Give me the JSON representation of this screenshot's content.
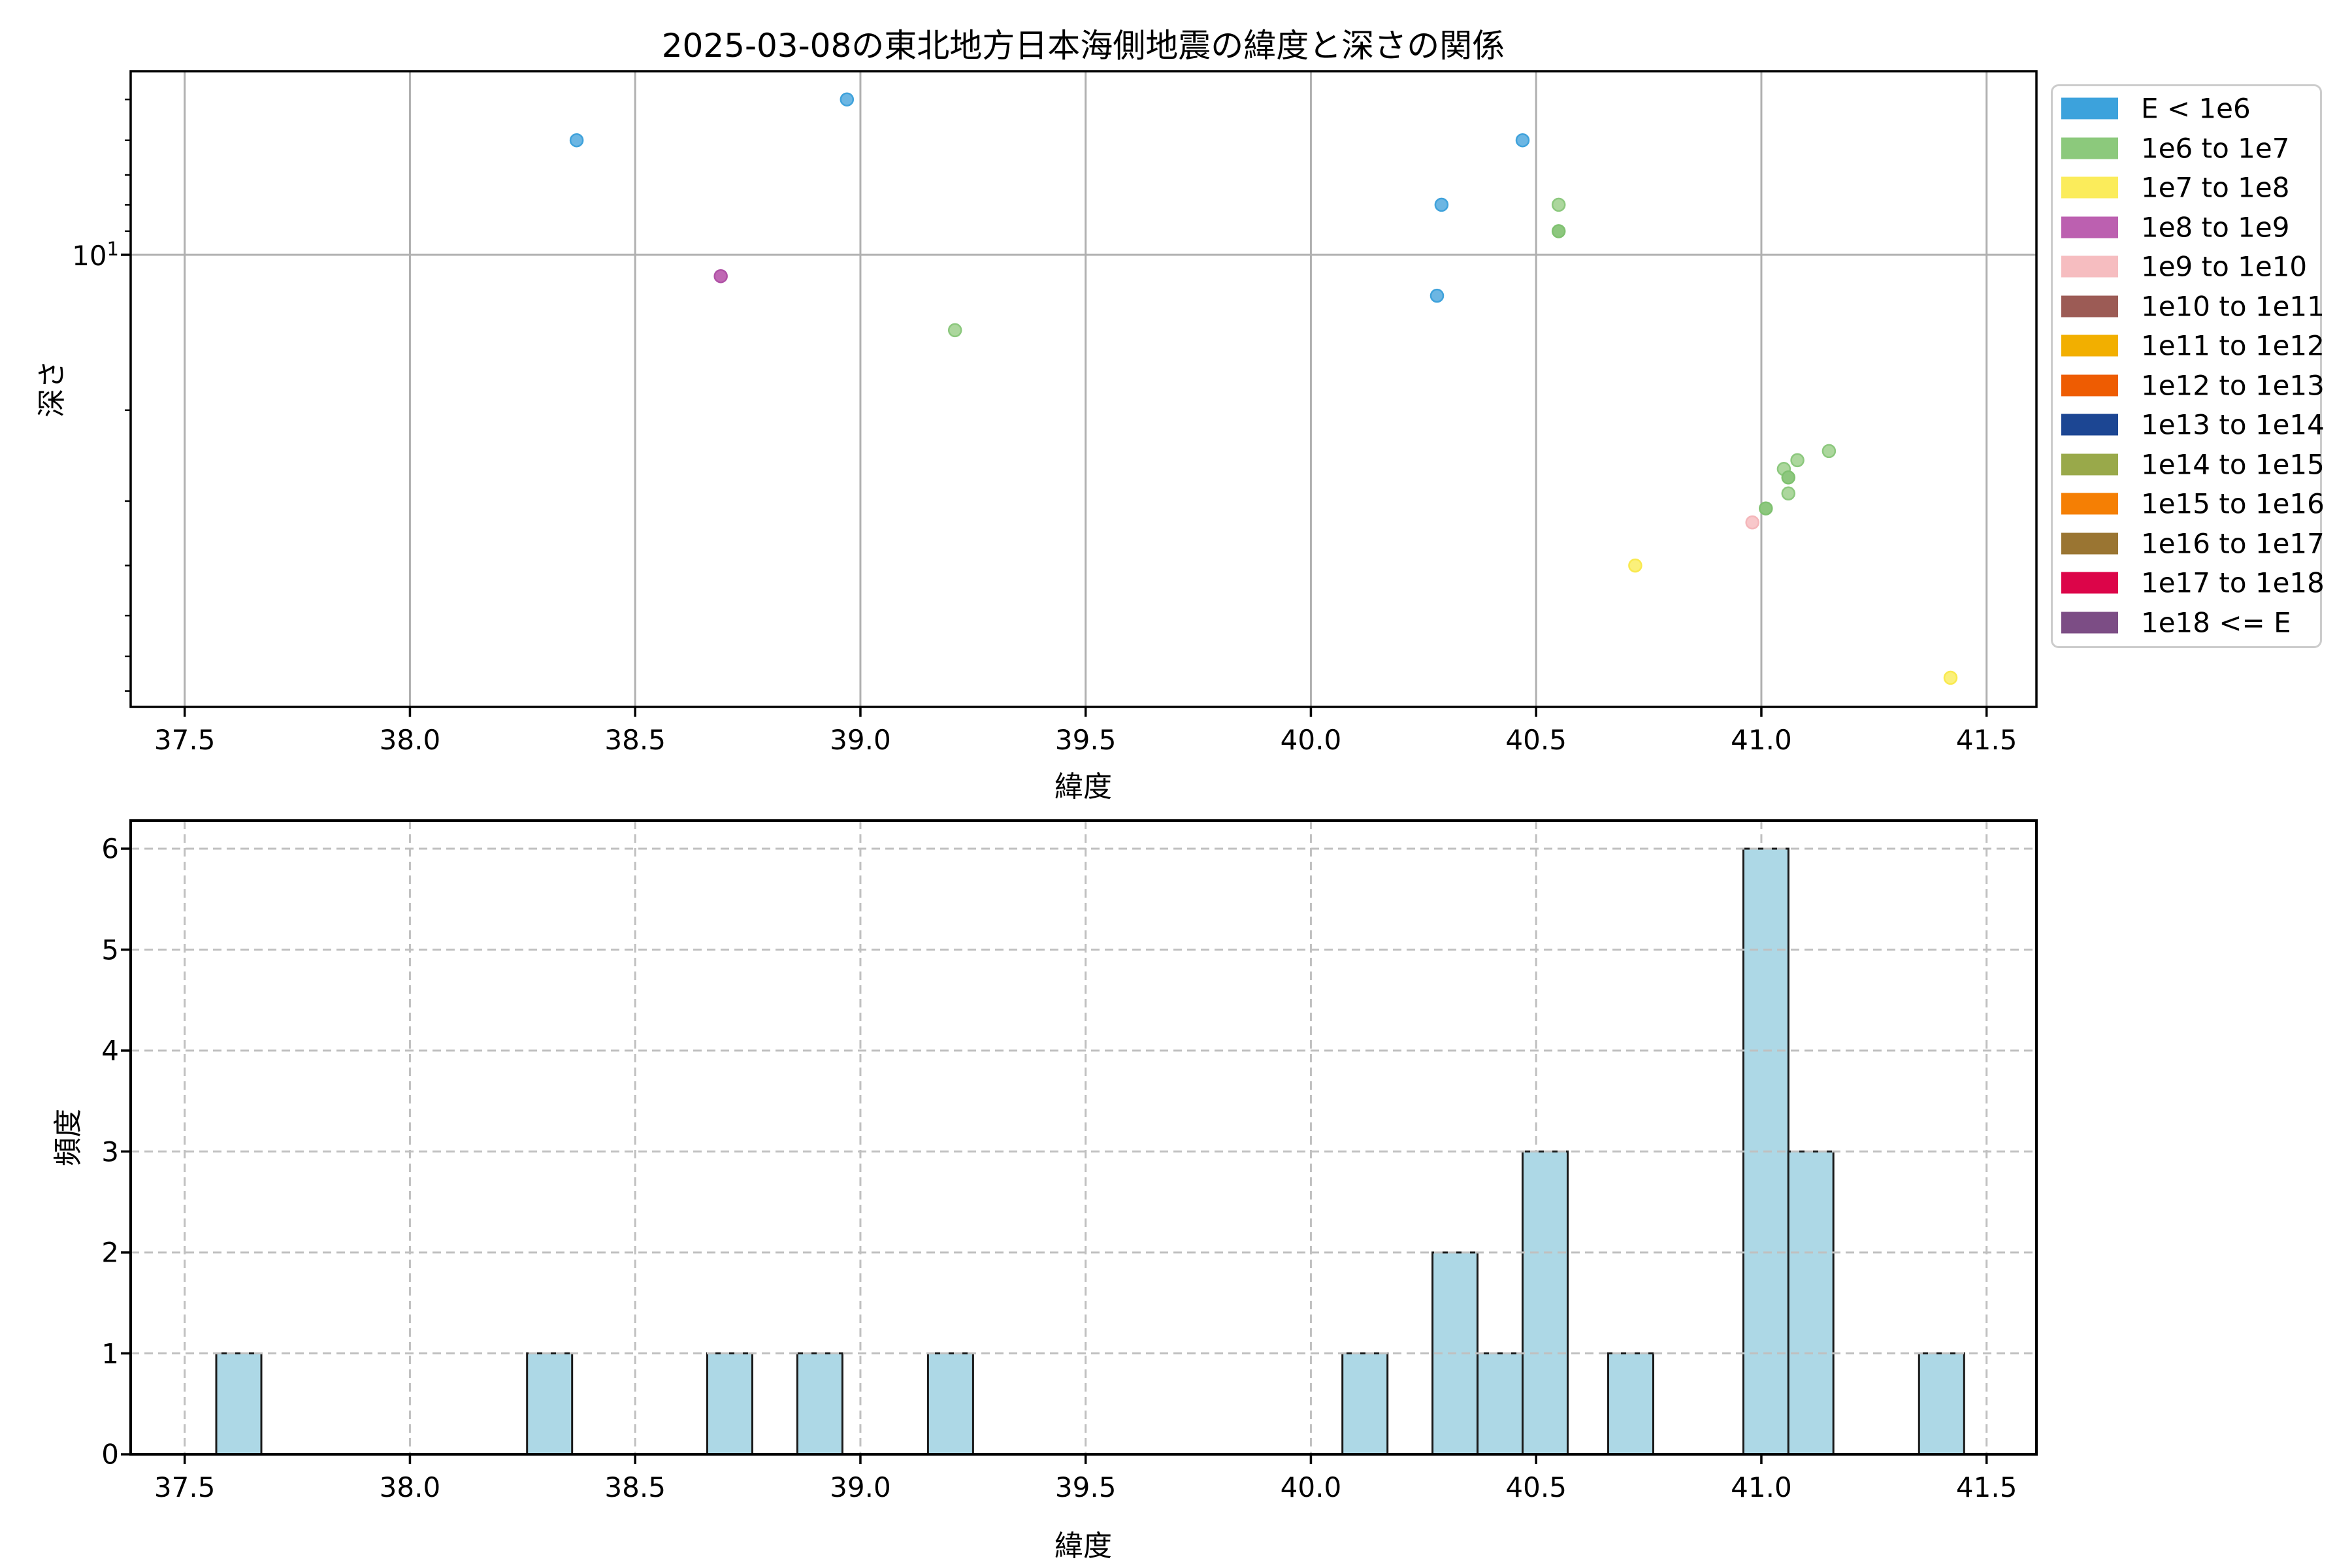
{
  "title": "2025-03-08の東北地方日本海側地震の緯度と深さの関係",
  "chart_data": [
    {
      "type": "scatter",
      "title": "2025-03-08の東北地方日本海側地震の緯度と深さの関係",
      "xlabel": "緯度",
      "ylabel": "深さ",
      "xlim": [
        37.38,
        41.59
      ],
      "xticks": [
        37.5,
        38.0,
        38.5,
        39.0,
        39.5,
        40.0,
        40.5,
        41.0,
        41.5
      ],
      "xtick_labels": [
        "37.5",
        "38.0",
        "38.5",
        "39.0",
        "39.5",
        "40.0",
        "40.5",
        "41.0",
        "41.5"
      ],
      "yaxis": {
        "scale": "log",
        "inverted": true,
        "range_depth": [
          4.4,
          75.1
        ],
        "major_tick": {
          "value": 10,
          "base": "10",
          "exp": "1"
        },
        "minor_ticks": [
          5,
          6,
          7,
          8,
          9,
          20,
          30,
          40,
          50,
          60,
          70
        ]
      },
      "grid": {
        "style": "solid",
        "color": "#b0b0b0"
      },
      "legend_position": "outside upper right",
      "points": [
        {
          "lat": 38.37,
          "depth": 6.0,
          "band": "E < 1e6"
        },
        {
          "lat": 38.97,
          "depth": 5.0,
          "band": "E < 1e6"
        },
        {
          "lat": 38.69,
          "depth": 11.0,
          "band": "1e8 to 1e9"
        },
        {
          "lat": 39.21,
          "depth": 14.0,
          "band": "1e6 to 1e7"
        },
        {
          "lat": 40.28,
          "depth": 12.0,
          "band": "E < 1e6"
        },
        {
          "lat": 40.29,
          "depth": 8.0,
          "band": "E < 1e6"
        },
        {
          "lat": 40.47,
          "depth": 6.0,
          "band": "E < 1e6"
        },
        {
          "lat": 40.55,
          "depth": 8.0,
          "band": "1e6 to 1e7"
        },
        {
          "lat": 40.55,
          "depth": 9.0,
          "band": "1e6 to 1e7",
          "shade": "solid"
        },
        {
          "lat": 40.72,
          "depth": 40.0,
          "band": "1e7 to 1e8"
        },
        {
          "lat": 40.98,
          "depth": 33.0,
          "band": "1e9 to 1e10"
        },
        {
          "lat": 41.01,
          "depth": 31.0,
          "band": "1e6 to 1e7",
          "shade": "solid"
        },
        {
          "lat": 41.05,
          "depth": 26.0,
          "band": "1e6 to 1e7"
        },
        {
          "lat": 41.06,
          "depth": 27.0,
          "band": "1e6 to 1e7",
          "shade": "solid"
        },
        {
          "lat": 41.06,
          "depth": 29.0,
          "band": "1e6 to 1e7"
        },
        {
          "lat": 41.08,
          "depth": 25.0,
          "band": "1e6 to 1e7"
        },
        {
          "lat": 41.15,
          "depth": 24.0,
          "band": "1e6 to 1e7"
        },
        {
          "lat": 41.42,
          "depth": 66.0,
          "band": "1e7 to 1e8"
        }
      ]
    },
    {
      "type": "bar",
      "xlabel": "緯度",
      "ylabel": "頻度",
      "xlim": [
        37.38,
        41.59
      ],
      "ylim": [
        0,
        6.3
      ],
      "xticks": [
        37.5,
        38.0,
        38.5,
        39.0,
        39.5,
        40.0,
        40.5,
        41.0,
        41.5
      ],
      "xtick_labels": [
        "37.5",
        "38.0",
        "38.5",
        "39.0",
        "39.5",
        "40.0",
        "40.5",
        "41.0",
        "41.5"
      ],
      "ytick_labels": [
        "0",
        "1",
        "2",
        "3",
        "4",
        "5",
        "6"
      ],
      "grid": {
        "style": "dashed",
        "color": "#c0c0c0"
      },
      "bar_fill": "#ADD8E6",
      "bar_edge": "#1a1a1a",
      "bars": [
        {
          "from": 37.57,
          "to": 37.67,
          "count": 1
        },
        {
          "from": 38.26,
          "to": 38.36,
          "count": 1
        },
        {
          "from": 38.66,
          "to": 38.76,
          "count": 1
        },
        {
          "from": 38.86,
          "to": 38.96,
          "count": 1
        },
        {
          "from": 39.15,
          "to": 39.25,
          "count": 1
        },
        {
          "from": 40.07,
          "to": 40.17,
          "count": 1
        },
        {
          "from": 40.27,
          "to": 40.37,
          "count": 2
        },
        {
          "from": 40.37,
          "to": 40.47,
          "count": 1
        },
        {
          "from": 40.47,
          "to": 40.57,
          "count": 3
        },
        {
          "from": 40.66,
          "to": 40.76,
          "count": 1
        },
        {
          "from": 40.96,
          "to": 41.06,
          "count": 6
        },
        {
          "from": 41.06,
          "to": 41.16,
          "count": 3
        },
        {
          "from": 41.35,
          "to": 41.45,
          "count": 1
        }
      ]
    }
  ],
  "legend": {
    "entries": [
      {
        "label": "E < 1e6",
        "color": "#3CA2DC"
      },
      {
        "label": "1e6 to 1e7",
        "color": "#8CC97C"
      },
      {
        "label": "1e7 to 1e8",
        "color": "#FBEC5B"
      },
      {
        "label": "1e8 to 1e9",
        "color": "#BC60B0"
      },
      {
        "label": "1e9 to 1e10",
        "color": "#F6BDC0"
      },
      {
        "label": "1e10 to 1e11",
        "color": "#9C5B55"
      },
      {
        "label": "1e11 to 1e12",
        "color": "#F2AF00"
      },
      {
        "label": "1e12 to 1e13",
        "color": "#EE5C02"
      },
      {
        "label": "1e13 to 1e14",
        "color": "#1C4693"
      },
      {
        "label": "1e14 to 1e15",
        "color": "#99A94A"
      },
      {
        "label": "1e15 to 1e16",
        "color": "#F57F04"
      },
      {
        "label": "1e16 to 1e17",
        "color": "#9A7532"
      },
      {
        "label": "1e17 to 1e18",
        "color": "#DC0549"
      },
      {
        "label": "1e18 <= E",
        "color": "#7C4D85"
      }
    ]
  },
  "marker_palette": {
    "E < 1e6": {
      "fill": "#6CB6E3",
      "edge": "#3FA2DB"
    },
    "1e6 to 1e7": {
      "fill": "#ACD79D",
      "edge": "#8CC87E"
    },
    "1e6 to 1e7|solid": {
      "fill": "#8DC77E",
      "edge": "#7FC170"
    },
    "1e7 to 1e8": {
      "fill": "#FBF07A",
      "edge": "#F9E94E"
    },
    "1e8 to 1e9": {
      "fill": "#C068B4",
      "edge": "#B052A6"
    },
    "1e9 to 1e10": {
      "fill": "#F8C7CA",
      "edge": "#F4B6BA"
    }
  },
  "ytick_log": {
    "base": "10",
    "exp": "1"
  }
}
